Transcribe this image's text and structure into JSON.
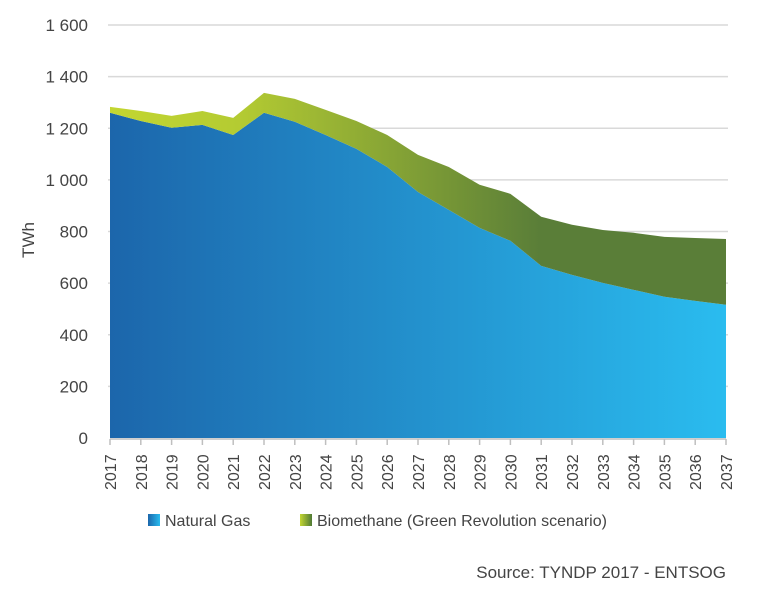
{
  "chart_data": {
    "type": "area",
    "stacked": true,
    "title": "",
    "xlabel": "",
    "ylabel": "TWh",
    "ylim": [
      0,
      1600
    ],
    "yticks": [
      0,
      200,
      400,
      600,
      800,
      1000,
      1200,
      1400,
      1600
    ],
    "ytick_labels": [
      "0",
      "200",
      "400",
      "600",
      "800",
      "1 000",
      "1 200",
      "1 400",
      "1 600"
    ],
    "grid": true,
    "categories": [
      "2017",
      "2018",
      "2019",
      "2020",
      "2021",
      "2022",
      "2023",
      "2024",
      "2025",
      "2026",
      "2027",
      "2028",
      "2029",
      "2030",
      "2031",
      "2032",
      "2033",
      "2034",
      "2035",
      "2036",
      "2037"
    ],
    "series": [
      {
        "name": "Natural Gas",
        "colors": [
          "#1c66ab",
          "#2abcef"
        ],
        "values": [
          1260,
          1228,
          1202,
          1213,
          1174,
          1260,
          1225,
          1174,
          1120,
          1050,
          953,
          884,
          814,
          764,
          667,
          632,
          601,
          574,
          547,
          531,
          516
        ]
      },
      {
        "name": "Biomethane (Green Revolution scenario)",
        "colors": [
          "#c3d631",
          "#5a7e38"
        ],
        "values": [
          23,
          39,
          46,
          54,
          66,
          77,
          89,
          97,
          108,
          124,
          144,
          166,
          167,
          182,
          190,
          194,
          205,
          221,
          232,
          244,
          255
        ]
      }
    ],
    "legend_position": "bottom",
    "source": "Source: TYNDP 2017 - ENTSOG"
  }
}
